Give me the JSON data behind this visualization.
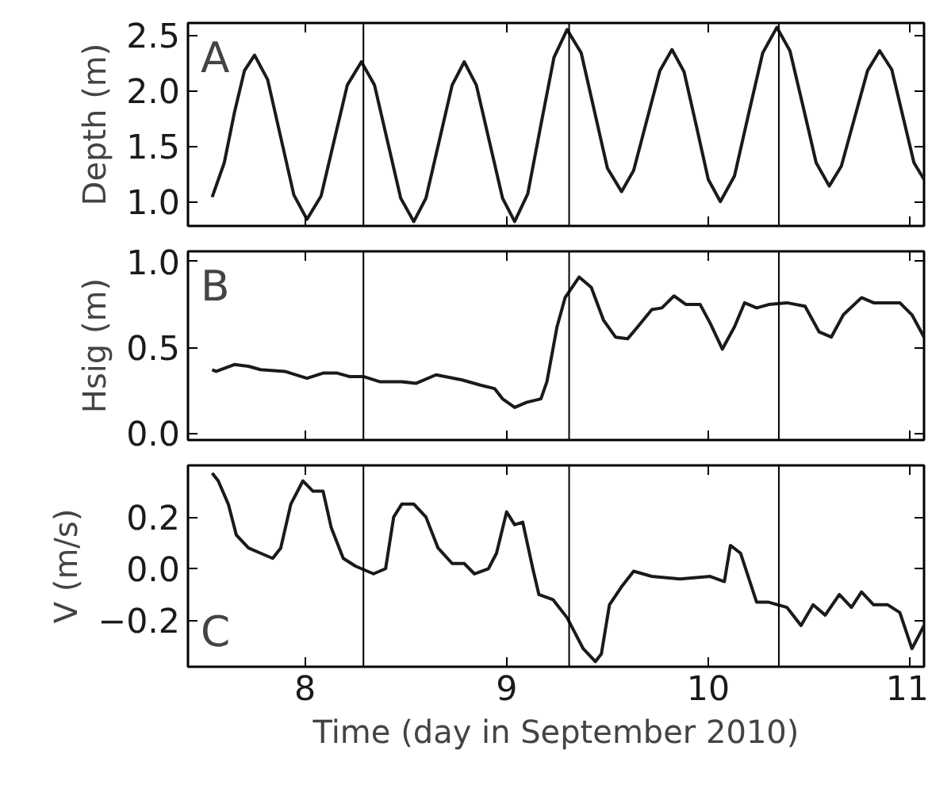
{
  "chart_data": [
    {
      "type": "line",
      "ylabel": "Depth (m)",
      "annotations": [
        "A"
      ],
      "tick_labels": "y",
      "xlim": [
        7.42,
        11.07
      ],
      "xticks": [
        {
          "value": 8,
          "label": null
        },
        {
          "value": 9,
          "label": null
        },
        {
          "value": 10,
          "label": null
        },
        {
          "value": 11,
          "label": null
        }
      ],
      "ylim": [
        0.78,
        2.61
      ],
      "yticks": [
        {
          "value": 1,
          "label": "1.0"
        },
        {
          "value": 1.5,
          "label": "1.5"
        },
        {
          "value": 2,
          "label": "2.0"
        },
        {
          "value": 2.5,
          "label": "2.5"
        }
      ],
      "ref_lines": [
        {
          "axis": "x",
          "value": 8.29,
          "color": "#000000"
        },
        {
          "axis": "x",
          "value": 9.31,
          "color": "#000000"
        },
        {
          "axis": "x",
          "value": 10.35,
          "color": "#000000"
        }
      ],
      "x": [
        7.54,
        7.6,
        7.65,
        7.7,
        7.75,
        7.815,
        7.88,
        7.945,
        8.01,
        8.08,
        8.145,
        8.21,
        8.28,
        8.345,
        8.41,
        8.475,
        8.54,
        8.6,
        8.665,
        8.73,
        8.79,
        8.85,
        8.915,
        8.98,
        9.04,
        9.105,
        9.17,
        9.235,
        9.3,
        9.37,
        9.435,
        9.5,
        9.57,
        9.63,
        9.695,
        9.76,
        9.82,
        9.88,
        9.94,
        10.0,
        10.06,
        10.13,
        10.2,
        10.27,
        10.34,
        10.405,
        10.47,
        10.535,
        10.6,
        10.66,
        10.725,
        10.79,
        10.85,
        10.91,
        10.965,
        11.02,
        11.07
      ],
      "series": [
        {
          "color": "#1a1a1a",
          "values": [
            1.04,
            1.35,
            1.8,
            2.18,
            2.32,
            2.1,
            1.58,
            1.06,
            0.84,
            1.05,
            1.55,
            2.05,
            2.26,
            2.05,
            1.54,
            1.03,
            0.82,
            1.03,
            1.54,
            2.05,
            2.26,
            2.05,
            1.54,
            1.03,
            0.82,
            1.07,
            1.69,
            2.3,
            2.55,
            2.34,
            1.82,
            1.3,
            1.09,
            1.28,
            1.73,
            2.18,
            2.37,
            2.17,
            1.69,
            1.2,
            1.0,
            1.23,
            1.79,
            2.34,
            2.57,
            2.36,
            1.86,
            1.35,
            1.14,
            1.32,
            1.75,
            2.18,
            2.36,
            2.19,
            1.77,
            1.35,
            1.2
          ]
        }
      ]
    },
    {
      "type": "line",
      "ylabel": "Hsig (m)",
      "annotations": [
        "B"
      ],
      "tick_labels": "y",
      "xlim": [
        7.42,
        11.07
      ],
      "xticks": [
        {
          "value": 8,
          "label": null
        },
        {
          "value": 9,
          "label": null
        },
        {
          "value": 10,
          "label": null
        },
        {
          "value": 11,
          "label": null
        }
      ],
      "ylim": [
        -0.04,
        1.06
      ],
      "yticks": [
        {
          "value": 0,
          "label": "0.0"
        },
        {
          "value": 0.5,
          "label": "0.5"
        },
        {
          "value": 1,
          "label": "1.0"
        }
      ],
      "ref_lines": [
        {
          "axis": "x",
          "value": 8.29,
          "color": "#000000"
        },
        {
          "axis": "x",
          "value": 9.31,
          "color": "#000000"
        },
        {
          "axis": "x",
          "value": 10.35,
          "color": "#000000"
        }
      ],
      "x": [
        7.54,
        7.56,
        7.65,
        7.72,
        7.78,
        7.9,
        8.01,
        8.09,
        8.16,
        8.22,
        8.29,
        8.37,
        8.48,
        8.55,
        8.65,
        8.78,
        8.87,
        8.94,
        8.98,
        9.04,
        9.1,
        9.17,
        9.2,
        9.25,
        9.29,
        9.36,
        9.42,
        9.48,
        9.54,
        9.6,
        9.65,
        9.72,
        9.77,
        9.83,
        9.89,
        9.96,
        10.01,
        10.07,
        10.13,
        10.18,
        10.24,
        10.3,
        10.39,
        10.48,
        10.55,
        10.61,
        10.67,
        10.76,
        10.82,
        10.89,
        10.95,
        11.01,
        11.07
      ],
      "series": [
        {
          "color": "#1a1a1a",
          "values": [
            0.37,
            0.36,
            0.4,
            0.39,
            0.37,
            0.36,
            0.32,
            0.35,
            0.35,
            0.33,
            0.33,
            0.3,
            0.3,
            0.29,
            0.34,
            0.31,
            0.28,
            0.26,
            0.2,
            0.15,
            0.18,
            0.2,
            0.3,
            0.62,
            0.79,
            0.91,
            0.85,
            0.66,
            0.56,
            0.55,
            0.62,
            0.72,
            0.73,
            0.8,
            0.75,
            0.75,
            0.64,
            0.49,
            0.62,
            0.76,
            0.73,
            0.75,
            0.76,
            0.74,
            0.59,
            0.56,
            0.69,
            0.79,
            0.76,
            0.76,
            0.76,
            0.69,
            0.56
          ]
        }
      ]
    },
    {
      "type": "line",
      "ylabel": "V (m/s)",
      "xlabel": "Time (day in September 2010)",
      "annotations": [
        "C"
      ],
      "xlim": [
        7.42,
        11.07
      ],
      "xticks": [
        8,
        9,
        10,
        11
      ],
      "ylim": [
        -0.38,
        0.4
      ],
      "yticks": [
        {
          "value": -0.2,
          "label": "−0.2"
        },
        {
          "value": 0,
          "label": "0.0"
        },
        {
          "value": 0.2,
          "label": "0.2"
        }
      ],
      "ref_lines": [
        {
          "axis": "x",
          "value": 8.29,
          "color": "#000000"
        },
        {
          "axis": "x",
          "value": 9.31,
          "color": "#000000"
        },
        {
          "axis": "x",
          "value": 10.35,
          "color": "#000000"
        }
      ],
      "x": [
        7.54,
        7.57,
        7.62,
        7.66,
        7.72,
        7.78,
        7.84,
        7.88,
        7.93,
        7.99,
        8.04,
        8.09,
        8.13,
        8.19,
        8.25,
        8.34,
        8.4,
        8.44,
        8.48,
        8.54,
        8.6,
        8.66,
        8.73,
        8.79,
        8.84,
        8.91,
        8.95,
        9.0,
        9.04,
        9.08,
        9.13,
        9.16,
        9.23,
        9.3,
        9.38,
        9.44,
        9.47,
        9.51,
        9.57,
        9.63,
        9.72,
        9.86,
        10.01,
        10.08,
        10.11,
        10.16,
        10.24,
        10.3,
        10.39,
        10.46,
        10.52,
        10.58,
        10.65,
        10.71,
        10.76,
        10.82,
        10.89,
        10.95,
        11.01,
        11.07
      ],
      "series": [
        {
          "color": "#1a1a1a",
          "values": [
            0.37,
            0.34,
            0.25,
            0.13,
            0.08,
            0.06,
            0.04,
            0.08,
            0.25,
            0.34,
            0.3,
            0.3,
            0.16,
            0.04,
            0.01,
            -0.02,
            0.0,
            0.2,
            0.25,
            0.25,
            0.2,
            0.08,
            0.02,
            0.02,
            -0.02,
            0.0,
            0.06,
            0.22,
            0.17,
            0.18,
            0.0,
            -0.1,
            -0.12,
            -0.19,
            -0.31,
            -0.36,
            -0.33,
            -0.14,
            -0.07,
            -0.01,
            -0.03,
            -0.04,
            -0.03,
            -0.05,
            0.09,
            0.06,
            -0.13,
            -0.13,
            -0.15,
            -0.22,
            -0.14,
            -0.18,
            -0.1,
            -0.15,
            -0.09,
            -0.14,
            -0.14,
            -0.17,
            -0.31,
            -0.22
          ]
        }
      ]
    }
  ]
}
